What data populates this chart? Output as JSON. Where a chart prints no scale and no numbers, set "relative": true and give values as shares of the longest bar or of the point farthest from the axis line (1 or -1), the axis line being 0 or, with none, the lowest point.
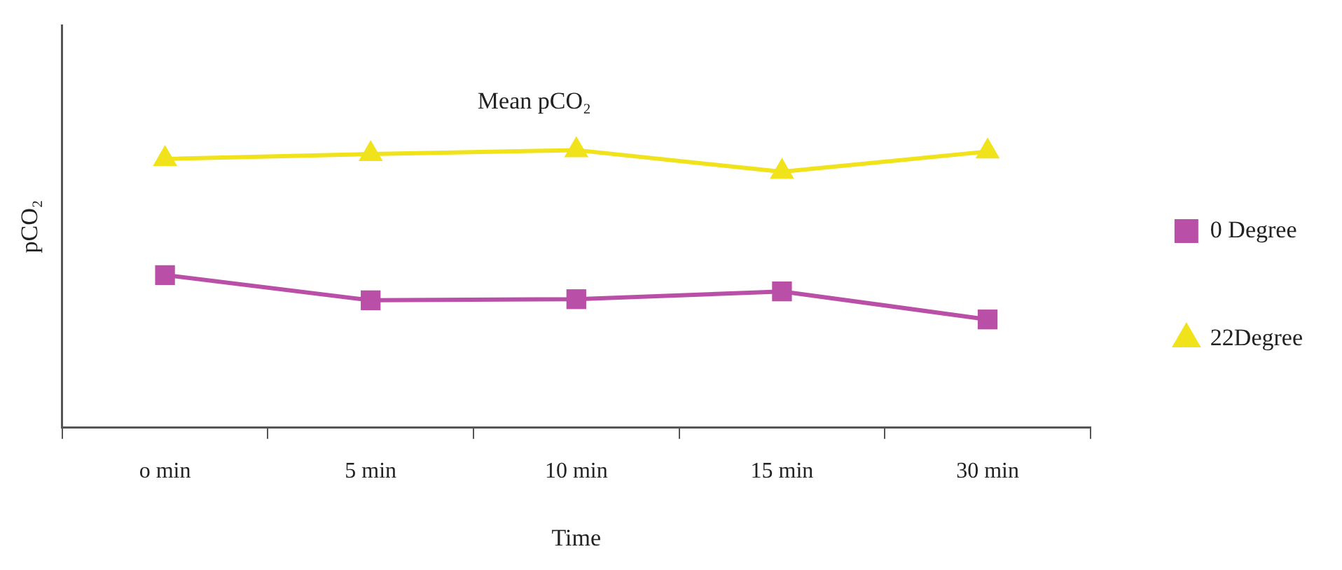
{
  "chart_data": {
    "type": "line",
    "title": "Mean pCO₂",
    "xlabel": "Time",
    "ylabel": "pCO₂",
    "categories": [
      "o min",
      "5 min",
      "10 min",
      "15 min",
      "30 min"
    ],
    "relative": true,
    "legend": "right",
    "line_style": "solid",
    "grid": false,
    "series": [
      {
        "name": "0 Degree",
        "color": "#b94fa6",
        "marker": "square",
        "values": [
          0.55,
          0.459,
          0.463,
          0.491,
          0.39
        ]
      },
      {
        "name": "22Degree",
        "color": "#f0e31c",
        "marker": "triangle",
        "values": [
          0.968,
          0.986,
          1,
          0.922,
          0.995
        ]
      }
    ]
  }
}
